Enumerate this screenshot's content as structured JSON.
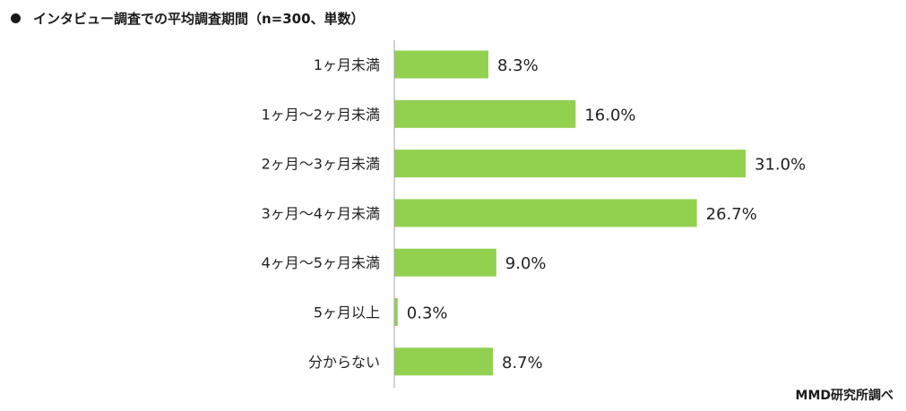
{
  "title_bullet": "●",
  "source_label": "MMD研究所調べ",
  "colors": {
    "bar": "#92d050",
    "axis": "#a6a6a6",
    "text": "#222222"
  },
  "chart_data": {
    "type": "bar",
    "orientation": "horizontal",
    "title": "インタビュー調査での平均調査期間（n=300、単数）",
    "categories": [
      "1ヶ月未満",
      "1ヶ月～2ヶ月未満",
      "2ヶ月～3ヶ月未満",
      "3ヶ月～4ヶ月未満",
      "4ヶ月～5ヶ月未満",
      "5ヶ月以上",
      "分からない"
    ],
    "values": [
      8.3,
      16.0,
      31.0,
      26.7,
      9.0,
      0.3,
      8.7
    ],
    "value_labels": [
      "8.3%",
      "16.0%",
      "31.0%",
      "26.7%",
      "9.0%",
      "0.3%",
      "8.7%"
    ],
    "unit": "%",
    "xlabel": "",
    "ylabel": "",
    "xlim": [
      0,
      31.0
    ],
    "grid": false,
    "legend": "none"
  }
}
